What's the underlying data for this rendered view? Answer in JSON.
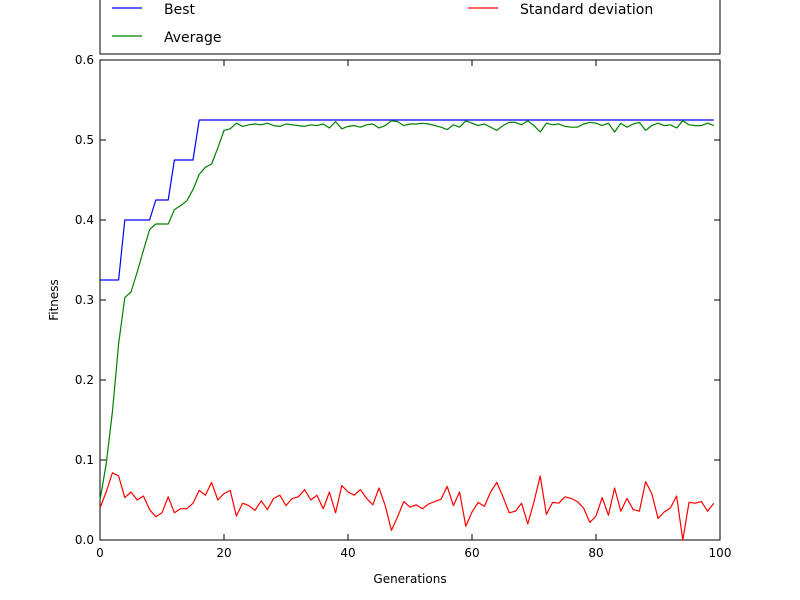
{
  "chart_data": {
    "type": "line",
    "xlabel": "Generations",
    "ylabel": "Fitness",
    "xlim": [
      0,
      100
    ],
    "ylim": [
      0,
      0.6
    ],
    "xticks": [
      "0",
      "20",
      "40",
      "60",
      "80",
      "100"
    ],
    "yticks": [
      "0.0",
      "0.1",
      "0.2",
      "0.3",
      "0.4",
      "0.5",
      "0.6"
    ],
    "legend_position": "top",
    "grid": false,
    "x": [
      0,
      1,
      2,
      3,
      4,
      5,
      6,
      7,
      8,
      9,
      10,
      11,
      12,
      13,
      14,
      15,
      16,
      17,
      18,
      19,
      20,
      21,
      22,
      23,
      24,
      25,
      26,
      27,
      28,
      29,
      30,
      31,
      32,
      33,
      34,
      35,
      36,
      37,
      38,
      39,
      40,
      41,
      42,
      43,
      44,
      45,
      46,
      47,
      48,
      49,
      50,
      51,
      52,
      53,
      54,
      55,
      56,
      57,
      58,
      59,
      60,
      61,
      62,
      63,
      64,
      65,
      66,
      67,
      68,
      69,
      70,
      71,
      72,
      73,
      74,
      75,
      76,
      77,
      78,
      79,
      80,
      81,
      82,
      83,
      84,
      85,
      86,
      87,
      88,
      89,
      90,
      91,
      92,
      93,
      94,
      95,
      96,
      97,
      98,
      99
    ],
    "series": [
      {
        "name": "Best",
        "color": "#0000ff",
        "values": [
          0.325,
          0.325,
          0.325,
          0.325,
          0.4,
          0.4,
          0.4,
          0.4,
          0.4,
          0.425,
          0.425,
          0.425,
          0.475,
          0.475,
          0.475,
          0.475,
          0.525,
          0.525,
          0.525,
          0.525,
          0.525,
          0.525,
          0.525,
          0.525,
          0.525,
          0.525,
          0.525,
          0.525,
          0.525,
          0.525,
          0.525,
          0.525,
          0.525,
          0.525,
          0.525,
          0.525,
          0.525,
          0.525,
          0.525,
          0.525,
          0.525,
          0.525,
          0.525,
          0.525,
          0.525,
          0.525,
          0.525,
          0.525,
          0.525,
          0.525,
          0.525,
          0.525,
          0.525,
          0.525,
          0.525,
          0.525,
          0.525,
          0.525,
          0.525,
          0.525,
          0.525,
          0.525,
          0.525,
          0.525,
          0.525,
          0.525,
          0.525,
          0.525,
          0.525,
          0.525,
          0.525,
          0.525,
          0.525,
          0.525,
          0.525,
          0.525,
          0.525,
          0.525,
          0.525,
          0.525,
          0.525,
          0.525,
          0.525,
          0.525,
          0.525,
          0.525,
          0.525,
          0.525,
          0.525,
          0.525,
          0.525,
          0.525,
          0.525,
          0.525,
          0.525,
          0.525,
          0.525,
          0.525,
          0.525,
          0.525
        ]
      },
      {
        "name": "Average",
        "color": "#008000",
        "values": [
          0.05,
          0.095,
          0.16,
          0.245,
          0.303,
          0.31,
          0.335,
          0.362,
          0.388,
          0.395,
          0.395,
          0.395,
          0.413,
          0.418,
          0.424,
          0.438,
          0.457,
          0.466,
          0.47,
          0.49,
          0.512,
          0.514,
          0.521,
          0.517,
          0.519,
          0.52,
          0.519,
          0.521,
          0.518,
          0.517,
          0.52,
          0.519,
          0.518,
          0.517,
          0.519,
          0.518,
          0.52,
          0.515,
          0.523,
          0.514,
          0.517,
          0.518,
          0.516,
          0.519,
          0.52,
          0.515,
          0.518,
          0.524,
          0.523,
          0.518,
          0.52,
          0.52,
          0.521,
          0.52,
          0.518,
          0.516,
          0.513,
          0.519,
          0.516,
          0.524,
          0.521,
          0.518,
          0.52,
          0.516,
          0.512,
          0.518,
          0.522,
          0.522,
          0.519,
          0.524,
          0.518,
          0.51,
          0.521,
          0.519,
          0.52,
          0.517,
          0.516,
          0.516,
          0.52,
          0.522,
          0.521,
          0.518,
          0.521,
          0.51,
          0.521,
          0.516,
          0.52,
          0.522,
          0.512,
          0.518,
          0.521,
          0.518,
          0.519,
          0.515,
          0.524,
          0.519,
          0.518,
          0.518,
          0.521,
          0.518
        ]
      },
      {
        "name": "Standard deviation",
        "color": "#ff0000",
        "values": [
          0.04,
          0.06,
          0.084,
          0.08,
          0.053,
          0.06,
          0.05,
          0.055,
          0.038,
          0.029,
          0.034,
          0.054,
          0.034,
          0.039,
          0.039,
          0.046,
          0.062,
          0.056,
          0.072,
          0.05,
          0.058,
          0.062,
          0.03,
          0.046,
          0.043,
          0.037,
          0.049,
          0.038,
          0.052,
          0.056,
          0.043,
          0.052,
          0.054,
          0.063,
          0.05,
          0.056,
          0.039,
          0.06,
          0.034,
          0.068,
          0.06,
          0.056,
          0.063,
          0.052,
          0.044,
          0.065,
          0.043,
          0.012,
          0.029,
          0.048,
          0.041,
          0.044,
          0.039,
          0.045,
          0.048,
          0.051,
          0.067,
          0.043,
          0.06,
          0.017,
          0.035,
          0.047,
          0.042,
          0.06,
          0.072,
          0.054,
          0.034,
          0.036,
          0.046,
          0.02,
          0.048,
          0.08,
          0.032,
          0.047,
          0.046,
          0.054,
          0.052,
          0.048,
          0.04,
          0.022,
          0.03,
          0.053,
          0.031,
          0.065,
          0.036,
          0.052,
          0.038,
          0.036,
          0.073,
          0.058,
          0.027,
          0.035,
          0.04,
          0.055,
          0.0,
          0.047,
          0.046,
          0.048,
          0.036,
          0.046
        ]
      }
    ]
  }
}
